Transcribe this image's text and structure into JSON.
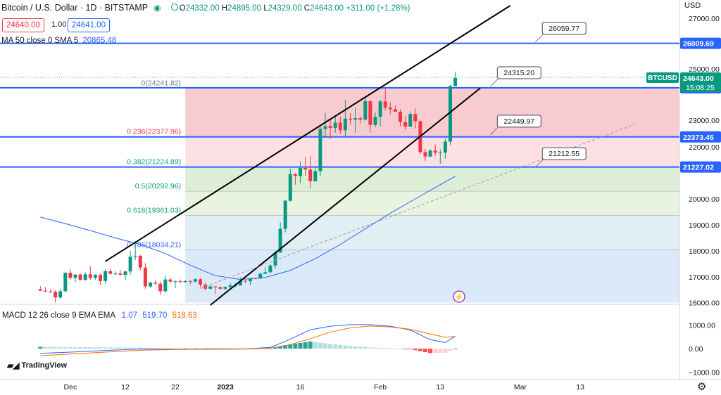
{
  "header": {
    "symbol": "Bitcoin / U.S. Dollar · 1D · BITSTAMP",
    "ohlc_o": "24332.00",
    "ohlc_h": "24895.00",
    "ohlc_l": "24329.00",
    "ohlc_c": "24643.00",
    "change": "+311.00 (+1.28%)",
    "bid": "24640.00",
    "spread": "1.00",
    "ask": "24641.00",
    "currency": "USD"
  },
  "sma": {
    "label": "MA 50 close 0 SMA 5",
    "value": "20865.48"
  },
  "macd": {
    "label": "MACD 12 26 close 9 EMA EMA",
    "hist": "1.07",
    "macd": "519.70",
    "signal": "518.63"
  },
  "brand": {
    "name": "TradingView"
  },
  "colors": {
    "up": "#089981",
    "down": "#f23645",
    "blue": "#2962ff",
    "orange": "#ff6d00",
    "black": "#000000"
  },
  "chart_data": {
    "type": "candlestick",
    "x_ticks": [
      {
        "label": "Dec",
        "date": "2022-12-01"
      },
      {
        "label": "12",
        "date": "2022-12-12"
      },
      {
        "label": "22",
        "date": "2022-12-22"
      },
      {
        "label": "2023",
        "date": "2023-01-01"
      },
      {
        "label": "16",
        "date": "2023-01-16"
      },
      {
        "label": "Feb",
        "date": "2023-02-01"
      },
      {
        "label": "13",
        "date": "2023-02-13"
      },
      {
        "label": "Mar",
        "date": "2023-03-01"
      },
      {
        "label": "13",
        "date": "2023-03-13"
      }
    ],
    "price_ticks": [
      {
        "label": "27000.00",
        "value": 27000
      },
      {
        "label": "25000.00",
        "value": 25000
      },
      {
        "label": "23000.00",
        "value": 23000
      },
      {
        "label": "22000.00",
        "value": 22000
      },
      {
        "label": "20000.00",
        "value": 20000
      },
      {
        "label": "19000.00",
        "value": 19000
      },
      {
        "label": "18000.00",
        "value": 18000
      },
      {
        "label": "17000.00",
        "value": 17000
      },
      {
        "label": "16000.00",
        "value": 16000
      }
    ],
    "macd_ticks": [
      {
        "label": "1000.00",
        "value": 1000
      },
      {
        "label": "0.00",
        "value": 0
      },
      {
        "label": "−1000.00",
        "value": -1000
      }
    ],
    "price_ylim": [
      16000,
      27500
    ],
    "macd_ylim": [
      -1000,
      1300
    ],
    "candles": [
      [
        "2022-11-25",
        16520,
        16640,
        16460,
        16460
      ],
      [
        "2022-11-26",
        16460,
        16600,
        16400,
        16430
      ],
      [
        "2022-11-27",
        16430,
        16500,
        16380,
        16420
      ],
      [
        "2022-11-28",
        16420,
        16480,
        16000,
        16200
      ],
      [
        "2022-11-29",
        16200,
        16520,
        16150,
        16440
      ],
      [
        "2022-11-30",
        16440,
        17180,
        16420,
        17160
      ],
      [
        "2022-12-01",
        17160,
        17290,
        16880,
        16960
      ],
      [
        "2022-12-02",
        16960,
        17100,
        16800,
        17090
      ],
      [
        "2022-12-03",
        17090,
        17140,
        16860,
        16880
      ],
      [
        "2022-12-04",
        16880,
        17180,
        16870,
        17100
      ],
      [
        "2022-12-05",
        17100,
        17400,
        16880,
        16960
      ],
      [
        "2022-12-06",
        16960,
        17100,
        16900,
        17080
      ],
      [
        "2022-12-07",
        17080,
        17130,
        16690,
        16840
      ],
      [
        "2022-12-08",
        16840,
        17290,
        16740,
        17220
      ],
      [
        "2022-12-09",
        17220,
        17320,
        17100,
        17120
      ],
      [
        "2022-12-10",
        17120,
        17220,
        17080,
        17130
      ],
      [
        "2022-12-11",
        17130,
        17270,
        17070,
        17080
      ],
      [
        "2022-12-12",
        17080,
        17240,
        16870,
        17210
      ],
      [
        "2022-12-13",
        17210,
        18000,
        17080,
        17780
      ],
      [
        "2022-12-14",
        17780,
        18380,
        17650,
        17810
      ],
      [
        "2022-12-15",
        17810,
        17850,
        17260,
        17360
      ],
      [
        "2022-12-16",
        17360,
        17530,
        16540,
        16630
      ],
      [
        "2022-12-17",
        16630,
        16800,
        16590,
        16780
      ],
      [
        "2022-12-18",
        16780,
        16860,
        16690,
        16740
      ],
      [
        "2022-12-19",
        16740,
        16820,
        16300,
        16440
      ],
      [
        "2022-12-20",
        16440,
        17050,
        16390,
        16900
      ],
      [
        "2022-12-21",
        16900,
        16950,
        16750,
        16820
      ],
      [
        "2022-12-22",
        16820,
        16870,
        16560,
        16830
      ],
      [
        "2022-12-23",
        16830,
        16900,
        16760,
        16800
      ],
      [
        "2022-12-24",
        16800,
        16870,
        16780,
        16840
      ],
      [
        "2022-12-25",
        16840,
        16860,
        16710,
        16820
      ],
      [
        "2022-12-26",
        16820,
        16940,
        16780,
        16910
      ],
      [
        "2022-12-27",
        16910,
        16960,
        16600,
        16700
      ],
      [
        "2022-12-28",
        16700,
        16790,
        16470,
        16540
      ],
      [
        "2022-12-29",
        16540,
        16660,
        16500,
        16630
      ],
      [
        "2022-12-30",
        16630,
        16650,
        16330,
        16600
      ],
      [
        "2022-12-31",
        16600,
        16630,
        16500,
        16540
      ],
      [
        "2023-01-01",
        16540,
        16630,
        16490,
        16610
      ],
      [
        "2023-01-02",
        16610,
        16760,
        16550,
        16670
      ],
      [
        "2023-01-03",
        16670,
        16760,
        16590,
        16670
      ],
      [
        "2023-01-04",
        16670,
        16990,
        16660,
        16850
      ],
      [
        "2023-01-05",
        16850,
        16880,
        16750,
        16830
      ],
      [
        "2023-01-06",
        16830,
        16960,
        16680,
        16950
      ],
      [
        "2023-01-07",
        16950,
        16970,
        16910,
        16940
      ],
      [
        "2023-01-08",
        16940,
        17170,
        16920,
        17120
      ],
      [
        "2023-01-09",
        17120,
        17390,
        17110,
        17180
      ],
      [
        "2023-01-10",
        17180,
        17490,
        17150,
        17440
      ],
      [
        "2023-01-11",
        17440,
        17990,
        17310,
        17940
      ],
      [
        "2023-01-12",
        17940,
        19100,
        17920,
        18850
      ],
      [
        "2023-01-13",
        18850,
        19960,
        18710,
        19930
      ],
      [
        "2023-01-14",
        19930,
        21160,
        19900,
        20950
      ],
      [
        "2023-01-15",
        20950,
        20990,
        20550,
        20880
      ],
      [
        "2023-01-16",
        20880,
        21440,
        20600,
        21190
      ],
      [
        "2023-01-17",
        21190,
        21620,
        20890,
        21130
      ],
      [
        "2023-01-18",
        21130,
        21650,
        20400,
        20680
      ],
      [
        "2023-01-19",
        20680,
        21180,
        20660,
        21070
      ],
      [
        "2023-01-20",
        21070,
        22760,
        20880,
        22670
      ],
      [
        "2023-01-21",
        22670,
        23280,
        22340,
        22780
      ],
      [
        "2023-01-22",
        22780,
        23060,
        22300,
        22710
      ],
      [
        "2023-01-23",
        22710,
        23150,
        22530,
        22910
      ],
      [
        "2023-01-24",
        22910,
        23140,
        22480,
        22620
      ],
      [
        "2023-01-25",
        22620,
        23780,
        22350,
        23060
      ],
      [
        "2023-01-26",
        23060,
        23270,
        22830,
        23020
      ],
      [
        "2023-01-27",
        23020,
        23480,
        22540,
        23080
      ],
      [
        "2023-01-28",
        23080,
        23160,
        22880,
        23020
      ],
      [
        "2023-01-29",
        23020,
        23950,
        22990,
        23740
      ],
      [
        "2023-01-30",
        23740,
        23780,
        22540,
        22820
      ],
      [
        "2023-01-31",
        22820,
        23300,
        22730,
        23130
      ],
      [
        "2023-02-01",
        23130,
        23790,
        22770,
        23730
      ],
      [
        "2023-02-02",
        23730,
        24240,
        23380,
        23490
      ],
      [
        "2023-02-03",
        23490,
        23700,
        23240,
        23430
      ],
      [
        "2023-02-04",
        23430,
        23560,
        23340,
        23330
      ],
      [
        "2023-02-05",
        23330,
        23420,
        22770,
        22930
      ],
      [
        "2023-02-06",
        22930,
        23160,
        22640,
        22760
      ],
      [
        "2023-02-07",
        22760,
        23340,
        22750,
        23240
      ],
      [
        "2023-02-08",
        23240,
        23450,
        22690,
        22960
      ],
      [
        "2023-02-09",
        22960,
        22990,
        21720,
        21800
      ],
      [
        "2023-02-10",
        21800,
        21930,
        21460,
        21630
      ],
      [
        "2023-02-11",
        21630,
        21900,
        21600,
        21860
      ],
      [
        "2023-02-12",
        21860,
        22090,
        21650,
        21780
      ],
      [
        "2023-02-13",
        21780,
        21900,
        21350,
        21780
      ],
      [
        "2023-02-14",
        21780,
        22320,
        21550,
        22200
      ],
      [
        "2023-02-15",
        22200,
        24380,
        22060,
        24330
      ],
      [
        "2023-02-16",
        24330,
        24895,
        24329,
        24643
      ]
    ],
    "sma50": [
      [
        "2022-11-25",
        19300
      ],
      [
        "2022-11-30",
        19050
      ],
      [
        "2022-12-05",
        18780
      ],
      [
        "2022-12-10",
        18500
      ],
      [
        "2022-12-15",
        18250
      ],
      [
        "2022-12-20",
        17900
      ],
      [
        "2022-12-25",
        17450
      ],
      [
        "2022-12-30",
        17050
      ],
      [
        "2023-01-04",
        16900
      ],
      [
        "2023-01-09",
        16980
      ],
      [
        "2023-01-14",
        17250
      ],
      [
        "2023-01-19",
        17700
      ],
      [
        "2023-01-24",
        18250
      ],
      [
        "2023-01-29",
        18850
      ],
      [
        "2023-02-03",
        19450
      ],
      [
        "2023-02-08",
        20000
      ],
      [
        "2023-02-13",
        20550
      ],
      [
        "2023-02-16",
        20865
      ]
    ],
    "fib": {
      "left_date": "2022-12-24",
      "levels": [
        {
          "label": "0(24241.82)",
          "value": 24241.82,
          "fill": "#f7cbd0"
        },
        {
          "label": "0.236(22377.96)",
          "value": 22377.96,
          "fill": "#fde0e3"
        },
        {
          "label": "0.382(21224.89)",
          "value": 21224.89,
          "fill": "#dcefd6"
        },
        {
          "label": "0.5(20292.96)",
          "value": 20292.96,
          "fill": "#e8f4df"
        },
        {
          "label": "0.618(19361.03)",
          "value": 19361.03,
          "fill": "#e1eef4"
        },
        {
          "label": "0.786(18034.21)",
          "value": 18034.21,
          "fill": "#dbeaf8"
        },
        {
          "label": "",
          "value": 16000,
          "fill": "#f9d0d5"
        }
      ],
      "label_colors": [
        "#787b86",
        "#f23645",
        "#089981",
        "#089981",
        "#089981",
        "#2962ff"
      ]
    },
    "horizontal_lines": [
      {
        "label": "26009.69",
        "value": 26009.69
      },
      {
        "label": "24262.93",
        "value": 24262.93
      },
      {
        "label": "22373.45",
        "value": 22373.45
      },
      {
        "label": "21227.02",
        "value": 21227.02
      }
    ],
    "callouts": [
      {
        "label": "26059.77",
        "value": 26059.77,
        "date": "2023-03-04"
      },
      {
        "label": "24315.20",
        "value": 24315.2,
        "date": "2023-02-23"
      },
      {
        "label": "22449.97",
        "value": 22449.97,
        "date": "2023-02-23"
      },
      {
        "label": "21212.55",
        "value": 21212.55,
        "date": "2023-03-04"
      }
    ],
    "channel": {
      "upper": [
        [
          "2022-12-08",
          17600
        ],
        [
          "2023-02-27",
          27500
        ]
      ],
      "lower": [
        [
          "2022-12-29",
          15900
        ],
        [
          "2023-02-21",
          24250
        ]
      ],
      "trend": [
        [
          "2022-12-27",
          16550
        ],
        [
          "2023-03-24",
          22850
        ]
      ]
    },
    "last_price": {
      "symbol": "BTCUSD",
      "price": "24643.00",
      "countdown": "15:08:25"
    },
    "macd_line": [
      [
        "2022-11-25",
        -200
      ],
      [
        "2022-12-01",
        -150
      ],
      [
        "2022-12-08",
        -80
      ],
      [
        "2022-12-15",
        -20
      ],
      [
        "2022-12-22",
        -30
      ],
      [
        "2022-12-29",
        -20
      ],
      [
        "2023-01-05",
        -10
      ],
      [
        "2023-01-10",
        50
      ],
      [
        "2023-01-14",
        400
      ],
      [
        "2023-01-18",
        800
      ],
      [
        "2023-01-22",
        950
      ],
      [
        "2023-01-26",
        1020
      ],
      [
        "2023-01-30",
        1020
      ],
      [
        "2023-02-03",
        950
      ],
      [
        "2023-02-07",
        790
      ],
      [
        "2023-02-11",
        380
      ],
      [
        "2023-02-14",
        260
      ],
      [
        "2023-02-16",
        520
      ]
    ],
    "signal_line": [
      [
        "2022-11-25",
        -300
      ],
      [
        "2022-12-01",
        -230
      ],
      [
        "2022-12-08",
        -150
      ],
      [
        "2022-12-15",
        -70
      ],
      [
        "2022-12-22",
        -40
      ],
      [
        "2022-12-29",
        -30
      ],
      [
        "2023-01-05",
        -20
      ],
      [
        "2023-01-10",
        20
      ],
      [
        "2023-01-14",
        170
      ],
      [
        "2023-01-18",
        420
      ],
      [
        "2023-01-22",
        700
      ],
      [
        "2023-01-26",
        880
      ],
      [
        "2023-01-30",
        960
      ],
      [
        "2023-02-03",
        920
      ],
      [
        "2023-02-07",
        820
      ],
      [
        "2023-02-11",
        620
      ],
      [
        "2023-02-14",
        480
      ],
      [
        "2023-02-16",
        519
      ]
    ]
  }
}
